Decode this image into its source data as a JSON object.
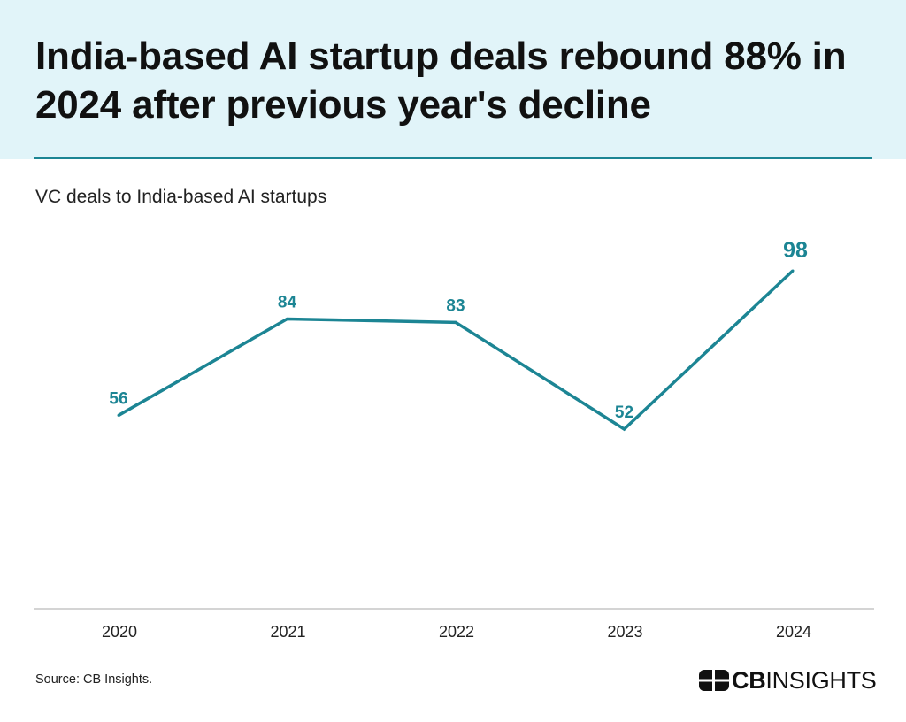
{
  "title": "India-based AI startup deals rebound 88% in 2024 after previous year's decline",
  "subtitle": "VC deals to India-based AI startups",
  "source": "Source: CB Insights.",
  "logo": {
    "bold": "CB",
    "regular": "INSIGHTS"
  },
  "colors": {
    "accent": "#1c8594",
    "banner": "#e1f4f9",
    "axis": "#bbbbbb",
    "text": "#111111"
  },
  "chart_data": {
    "type": "line",
    "title": "VC deals to India-based AI startups",
    "xlabel": "",
    "ylabel": "",
    "categories": [
      "2020",
      "2021",
      "2022",
      "2023",
      "2024"
    ],
    "series": [
      {
        "name": "VC deals to India-based AI startups",
        "values": [
          56,
          84,
          83,
          52,
          98
        ],
        "labels": [
          "56",
          "84",
          "83",
          "52",
          "98"
        ]
      }
    ],
    "highlight_last_label": true,
    "grid": false
  }
}
